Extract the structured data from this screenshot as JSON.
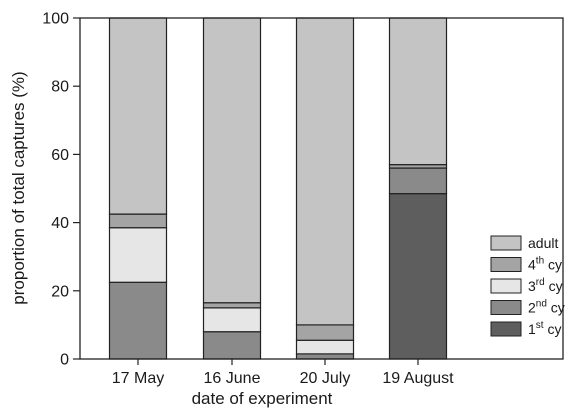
{
  "chart_data": {
    "type": "bar",
    "stacked": true,
    "xlabel": "date of experiment",
    "ylabel": "proportion of total captures (%)",
    "ylim": [
      0,
      100
    ],
    "yticks": [
      "0",
      "20",
      "40",
      "60",
      "80",
      "100"
    ],
    "grid": false,
    "legend_position": "bottom-right",
    "categories": [
      "17 May",
      "16 June",
      "20 July",
      "19 August"
    ],
    "series": [
      {
        "name": "1st cy",
        "name_base": "1",
        "name_sup": "st",
        "name_suffix": " cy",
        "color": "#5e5e5e",
        "values": [
          0,
          0,
          0,
          48.5
        ]
      },
      {
        "name": "2nd cy",
        "name_base": "2",
        "name_sup": "nd",
        "name_suffix": " cy",
        "color": "#8a8a8a",
        "values": [
          22.5,
          8,
          1.5,
          7.5
        ]
      },
      {
        "name": "3rd cy",
        "name_base": "3",
        "name_sup": "rd",
        "name_suffix": " cy",
        "color": "#e6e6e6",
        "values": [
          16,
          7,
          4,
          0
        ]
      },
      {
        "name": "4th cy",
        "name_base": "4",
        "name_sup": "th",
        "name_suffix": " cy",
        "color": "#a4a4a4",
        "values": [
          4,
          1.5,
          4.5,
          1
        ]
      },
      {
        "name": "adult",
        "name_base": "adult",
        "name_sup": "",
        "name_suffix": "",
        "color": "#c4c4c4",
        "values": [
          57.5,
          83.5,
          90,
          43
        ]
      }
    ]
  }
}
